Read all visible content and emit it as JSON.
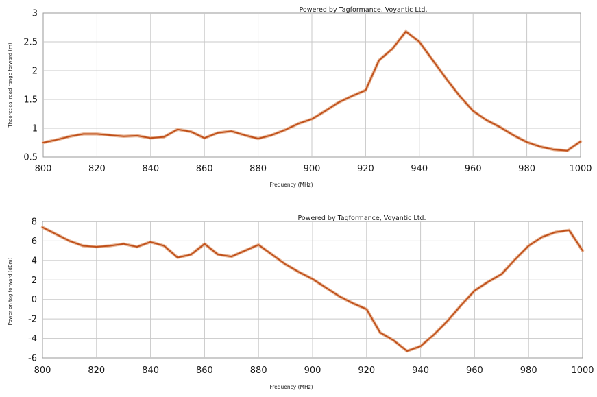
{
  "chart_data": [
    {
      "type": "line",
      "title": "Powered by Tagformance, Voyantic Ltd.",
      "xlabel": "Frequency (MHz)",
      "ylabel": "Theoretical read range forward (m)",
      "xlim": [
        800,
        1000
      ],
      "ylim": [
        0.5,
        3
      ],
      "x_ticks": [
        800,
        820,
        840,
        860,
        880,
        900,
        920,
        940,
        960,
        980,
        1000
      ],
      "y_ticks": [
        0.5,
        1,
        1.5,
        2,
        2.5,
        3
      ],
      "grid": true,
      "color": "#c0501a",
      "series": [
        {
          "x": [
            800,
            805,
            810,
            815,
            820,
            825,
            830,
            835,
            840,
            845,
            850,
            855,
            860,
            865,
            870,
            875,
            880,
            885,
            890,
            895,
            900,
            905,
            910,
            915,
            920,
            925,
            930,
            935,
            940,
            945,
            950,
            955,
            960,
            965,
            970,
            975,
            980,
            985,
            990,
            995,
            1000
          ],
          "y": [
            0.75,
            0.8,
            0.86,
            0.9,
            0.9,
            0.88,
            0.86,
            0.87,
            0.83,
            0.85,
            0.98,
            0.94,
            0.83,
            0.92,
            0.95,
            0.88,
            0.82,
            0.88,
            0.97,
            1.08,
            1.16,
            1.3,
            1.45,
            1.56,
            1.66,
            2.18,
            2.38,
            2.68,
            2.5,
            2.18,
            1.86,
            1.56,
            1.3,
            1.14,
            1.02,
            0.88,
            0.76,
            0.68,
            0.63,
            0.61,
            0.77
          ]
        }
      ]
    },
    {
      "type": "line",
      "title": "Powered by Tagformance, Voyantic Ltd.",
      "xlabel": "Frequency (MHz)",
      "ylabel": "Power on tag forward (dBm)",
      "xlim": [
        800,
        1000
      ],
      "ylim": [
        -6,
        8
      ],
      "x_ticks": [
        800,
        820,
        840,
        860,
        880,
        900,
        920,
        940,
        960,
        980,
        1000
      ],
      "y_ticks": [
        -6,
        -4,
        -2,
        0,
        2,
        4,
        6,
        8
      ],
      "grid": true,
      "color": "#c0501a",
      "series": [
        {
          "x": [
            800,
            805,
            810,
            815,
            820,
            825,
            830,
            835,
            840,
            845,
            850,
            855,
            860,
            865,
            870,
            875,
            880,
            885,
            890,
            895,
            900,
            905,
            910,
            915,
            920,
            925,
            930,
            935,
            940,
            945,
            950,
            955,
            960,
            965,
            970,
            975,
            980,
            985,
            990,
            995,
            1000
          ],
          "y": [
            7.4,
            6.7,
            6.0,
            5.5,
            5.4,
            5.5,
            5.7,
            5.4,
            5.9,
            5.5,
            4.3,
            4.6,
            5.7,
            4.6,
            4.4,
            5.0,
            5.6,
            4.6,
            3.6,
            2.8,
            2.1,
            1.2,
            0.3,
            -0.4,
            -1.0,
            -3.4,
            -4.2,
            -5.3,
            -4.8,
            -3.6,
            -2.2,
            -0.6,
            0.9,
            1.8,
            2.6,
            4.1,
            5.5,
            6.4,
            6.9,
            7.1,
            5.0
          ]
        }
      ]
    }
  ]
}
